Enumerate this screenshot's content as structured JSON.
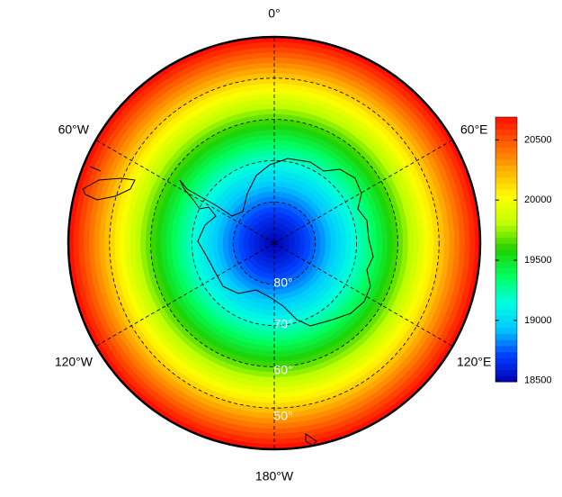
{
  "map": {
    "projection": "south-polar-stereographic",
    "longitude_labels": [
      "0°",
      "60°E",
      "120°E",
      "180°W",
      "120°W",
      "60°W"
    ],
    "latitude_labels": [
      "80°",
      "70°",
      "60°",
      "50°"
    ]
  },
  "colorbar": {
    "lim": [
      18490,
      20690
    ],
    "ticks": [
      18500,
      19000,
      19500,
      20000,
      20500
    ],
    "colormap": [
      "#0000b4",
      "#0040ff",
      "#00c8ff",
      "#00ffe0",
      "#00ff60",
      "#20d000",
      "#c0ff00",
      "#ffff00",
      "#ffb000",
      "#ff6000",
      "#ff1000"
    ]
  }
}
